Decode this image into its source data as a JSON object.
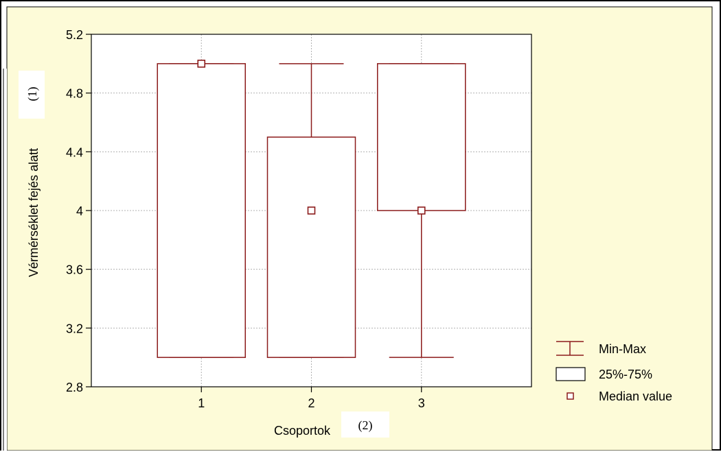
{
  "chart_data": {
    "type": "box",
    "categories": [
      "1",
      "2",
      "3"
    ],
    "boxes": [
      {
        "category": "1",
        "min": 3.0,
        "q1": 3.0,
        "median": 5.0,
        "q3": 5.0,
        "max": 5.0
      },
      {
        "category": "2",
        "min": 3.0,
        "q1": 3.0,
        "median": 4.0,
        "q3": 4.5,
        "max": 5.0
      },
      {
        "category": "3",
        "min": 3.0,
        "q1": 4.0,
        "median": 4.0,
        "q3": 5.0,
        "max": 5.0
      }
    ],
    "title": "",
    "xlabel": "Csoportok",
    "ylabel": "Vérmérséklet fejés alatt",
    "ylim": [
      2.8,
      5.2
    ],
    "yticks": [
      "2.8",
      "3.2",
      "3.6",
      "4",
      "4.4",
      "4.8",
      "5.2"
    ],
    "grid": true,
    "legend": {
      "placement": "right",
      "items": [
        "Min-Max",
        "25%-75%",
        "Median value"
      ]
    },
    "annotations": [
      "(1)",
      "(2)"
    ],
    "colors": {
      "series": "#8b1a1a",
      "background": "#fdfbd8",
      "plot_area": "#ffffff",
      "grid": "#b0b0b0"
    }
  }
}
